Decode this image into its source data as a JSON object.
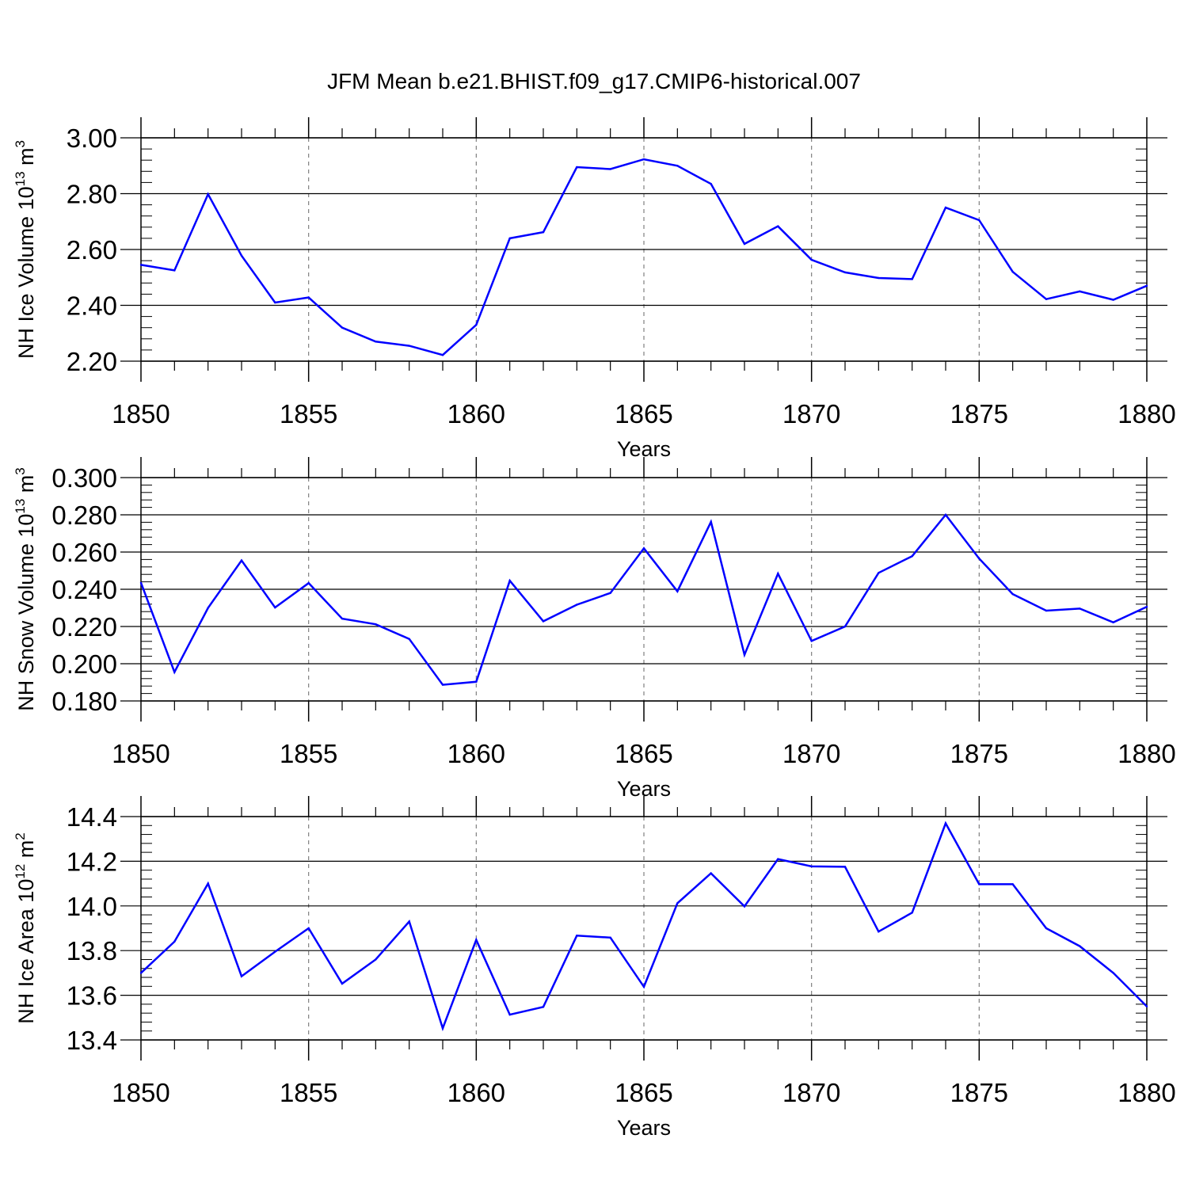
{
  "title": "JFM Mean b.e21.BHIST.f09_g17.CMIP6-historical.007",
  "colors": {
    "line": "#0000ff",
    "axis": "#000000",
    "grid": "#808080"
  },
  "chart_data": [
    {
      "type": "line",
      "ylabel": {
        "main": "NH Ice Volume 10",
        "sup": "13",
        "unit": " m",
        "unit_sup": "3"
      },
      "xlabel": "Years",
      "xlim": [
        1850,
        1880
      ],
      "ylim": [
        2.2,
        3.0
      ],
      "yticks": [
        "2.20",
        "2.40",
        "2.60",
        "2.80",
        "3.00"
      ],
      "xticks": [
        "1850",
        "1855",
        "1860",
        "1865",
        "1870",
        "1875",
        "1880"
      ],
      "x": [
        1850,
        1851,
        1852,
        1853,
        1854,
        1855,
        1856,
        1857,
        1858,
        1859,
        1860,
        1861,
        1862,
        1863,
        1864,
        1865,
        1866,
        1867,
        1868,
        1869,
        1870,
        1871,
        1872,
        1873,
        1874,
        1875,
        1876,
        1877,
        1878,
        1879,
        1880
      ],
      "values": [
        2.545,
        2.525,
        2.798,
        2.578,
        2.41,
        2.428,
        2.32,
        2.27,
        2.255,
        2.222,
        2.33,
        2.64,
        2.662,
        2.895,
        2.888,
        2.923,
        2.9,
        2.835,
        2.62,
        2.683,
        2.563,
        2.518,
        2.498,
        2.494,
        2.75,
        2.705,
        2.52,
        2.422,
        2.45,
        2.42,
        2.47
      ]
    },
    {
      "type": "line",
      "ylabel": {
        "main": "NH Snow Volume 10",
        "sup": "13",
        "unit": " m",
        "unit_sup": "3"
      },
      "xlabel": "Years",
      "xlim": [
        1850,
        1880
      ],
      "ylim": [
        0.18,
        0.3
      ],
      "yticks": [
        "0.180",
        "0.200",
        "0.220",
        "0.240",
        "0.260",
        "0.280",
        "0.300"
      ],
      "xticks": [
        "1850",
        "1855",
        "1860",
        "1865",
        "1870",
        "1875",
        "1880"
      ],
      "x": [
        1850,
        1851,
        1852,
        1853,
        1854,
        1855,
        1856,
        1857,
        1858,
        1859,
        1860,
        1861,
        1862,
        1863,
        1864,
        1865,
        1866,
        1867,
        1868,
        1869,
        1870,
        1871,
        1872,
        1873,
        1874,
        1875,
        1876,
        1877,
        1878,
        1879,
        1880
      ],
      "values": [
        0.2435,
        0.1955,
        0.23,
        0.2555,
        0.2302,
        0.2433,
        0.2242,
        0.2212,
        0.2133,
        0.1887,
        0.1903,
        0.2446,
        0.2228,
        0.2317,
        0.238,
        0.262,
        0.2389,
        0.2762,
        0.2048,
        0.2484,
        0.2122,
        0.22,
        0.2488,
        0.2578,
        0.28,
        0.2565,
        0.2374,
        0.2285,
        0.2296,
        0.2222,
        0.2306
      ]
    },
    {
      "type": "line",
      "ylabel": {
        "main": "NH Ice Area 10",
        "sup": "12",
        "unit": " m",
        "unit_sup": "2"
      },
      "xlabel": "Years",
      "xlim": [
        1850,
        1880
      ],
      "ylim": [
        13.4,
        14.4
      ],
      "yticks": [
        "13.4",
        "13.6",
        "13.8",
        "14.0",
        "14.2",
        "14.4"
      ],
      "xticks": [
        "1850",
        "1855",
        "1860",
        "1865",
        "1870",
        "1875",
        "1880"
      ],
      "x": [
        1850,
        1851,
        1852,
        1853,
        1854,
        1855,
        1856,
        1857,
        1858,
        1859,
        1860,
        1861,
        1862,
        1863,
        1864,
        1865,
        1866,
        1867,
        1868,
        1869,
        1870,
        1871,
        1872,
        1873,
        1874,
        1875,
        1876,
        1877,
        1878,
        1879,
        1880
      ],
      "values": [
        13.7,
        13.84,
        14.1,
        13.685,
        13.795,
        13.9,
        13.652,
        13.76,
        13.93,
        13.452,
        13.848,
        13.513,
        13.548,
        13.867,
        13.858,
        13.638,
        14.012,
        14.146,
        13.998,
        14.21,
        14.177,
        14.175,
        13.885,
        13.97,
        14.37,
        14.097,
        14.097,
        13.9,
        13.82,
        13.7,
        13.55
      ]
    }
  ]
}
